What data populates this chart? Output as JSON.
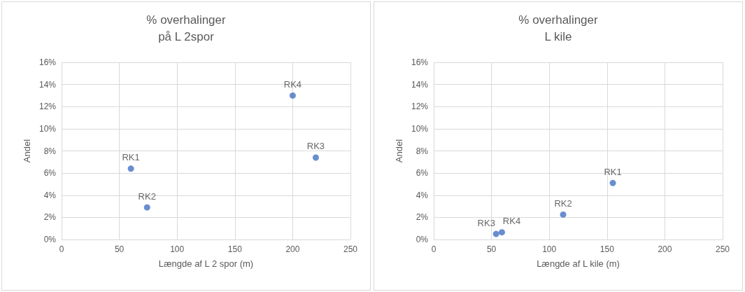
{
  "chart_data": [
    {
      "type": "scatter",
      "title": "% overhalinger\npå L 2spor",
      "xlabel": "Længde af L 2 spor (m)",
      "ylabel": "Andel",
      "x": [
        60,
        74,
        200,
        220
      ],
      "series": [
        {
          "color": "#4472c4",
          "values": [
            6.4,
            2.9,
            13.0,
            7.4
          ],
          "value_labels": [
            "RK1",
            "RK2",
            "RK4",
            "RK3"
          ]
        }
      ],
      "xlim": [
        0,
        250
      ],
      "xticks": [
        0,
        50,
        100,
        150,
        200,
        250
      ],
      "ylim": [
        0,
        16
      ],
      "yticks": [
        {
          "value": 0,
          "label": "0%"
        },
        {
          "value": 2,
          "label": "2%"
        },
        {
          "value": 4,
          "label": "4%"
        },
        {
          "value": 6,
          "label": "6%"
        },
        {
          "value": 8,
          "label": "8%"
        },
        {
          "value": 10,
          "label": "10%"
        },
        {
          "value": 12,
          "label": "12%"
        },
        {
          "value": 14,
          "label": "14%"
        },
        {
          "value": 16,
          "label": "16%"
        }
      ],
      "grid": true,
      "marker": "circle"
    },
    {
      "type": "scatter",
      "title": "% overhalinger\nL kile",
      "xlabel": "Længde af L kile (m)",
      "ylabel": "Andel",
      "x": [
        155,
        112,
        54,
        59
      ],
      "series": [
        {
          "color": "#4472c4",
          "values": [
            5.1,
            2.25,
            0.5,
            0.65
          ],
          "value_labels": [
            "RK1",
            "RK2",
            "RK3",
            "RK4"
          ]
        }
      ],
      "xlim": [
        0,
        250
      ],
      "xticks": [
        0,
        50,
        100,
        150,
        200,
        250
      ],
      "ylim": [
        0,
        16
      ],
      "yticks": [
        {
          "value": 0,
          "label": "0%"
        },
        {
          "value": 2,
          "label": "2%"
        },
        {
          "value": 4,
          "label": "4%"
        },
        {
          "value": 6,
          "label": "6%"
        },
        {
          "value": 8,
          "label": "8%"
        },
        {
          "value": 10,
          "label": "10%"
        },
        {
          "value": 12,
          "label": "12%"
        },
        {
          "value": 14,
          "label": "14%"
        },
        {
          "value": 16,
          "label": "16%"
        }
      ],
      "grid": true,
      "marker": "circle"
    }
  ]
}
